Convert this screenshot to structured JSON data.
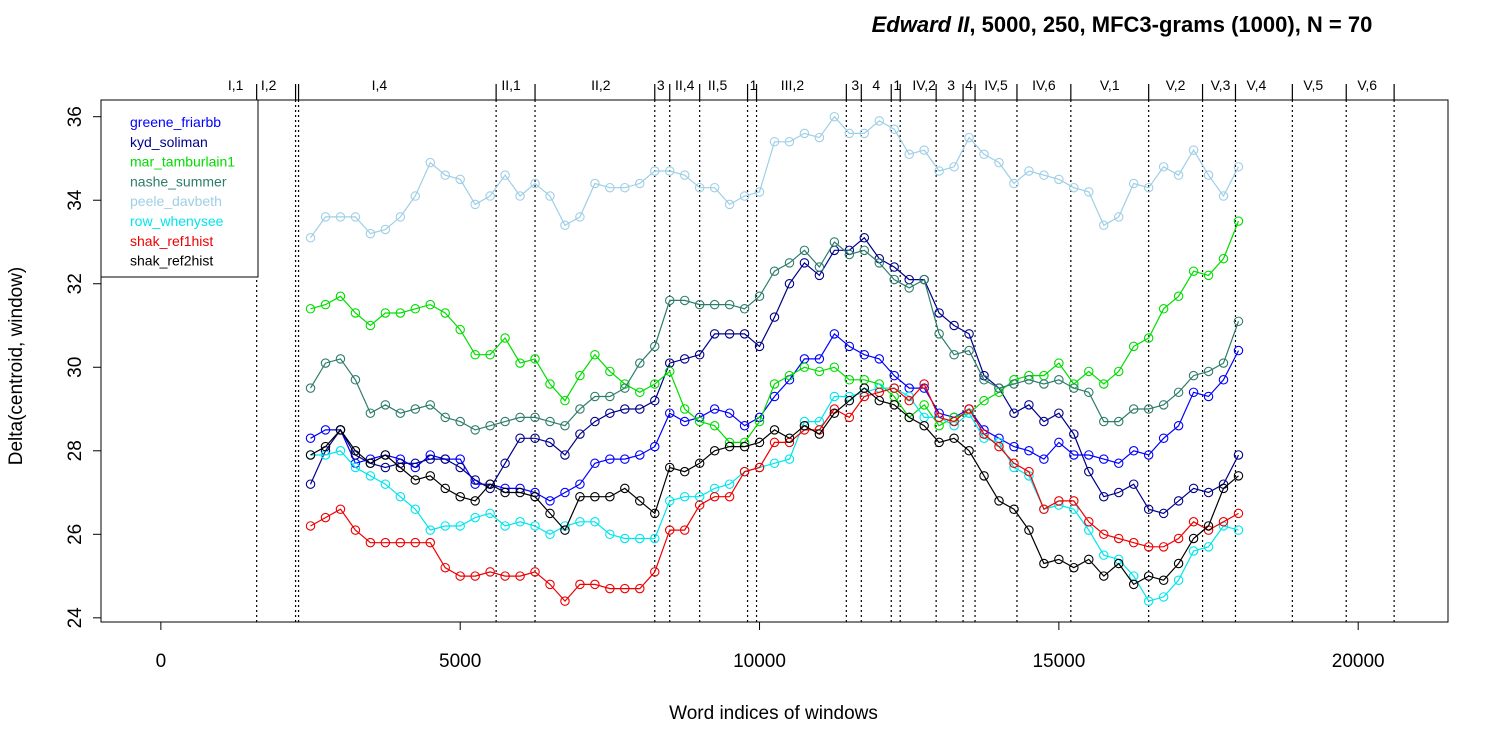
{
  "chart_data": {
    "type": "line",
    "title_play": "Edward II",
    "title_rest": ", 5000, 250, MFC3-grams (1000), N = 70",
    "xlabel": "Word indices of windows",
    "ylabel": "Delta(centroid, window)",
    "xlim": [
      -1000,
      21500
    ],
    "ylim": [
      23.9,
      36.4
    ],
    "x_ticks": [
      "0",
      "5000",
      "10000",
      "15000",
      "20000"
    ],
    "y_ticks": [
      "24",
      "26",
      "28",
      "30",
      "32",
      "34",
      "36"
    ],
    "x_tick_values": [
      0,
      5000,
      10000,
      15000,
      20000
    ],
    "y_tick_values": [
      24,
      26,
      28,
      30,
      32,
      34,
      36
    ],
    "legend_position": "top-left",
    "scenes": [
      {
        "label": "I,1",
        "x": 1600,
        "label_x": 1250
      },
      {
        "label": "I,2",
        "x": 2250,
        "label_x": 1800
      },
      {
        "label": "",
        "x": 2300,
        "label_x": 0
      },
      {
        "label": "I,4",
        "x": 5600,
        "label_x": 3650
      },
      {
        "label": "II,1",
        "x": 6250,
        "label_x": 5850
      },
      {
        "label": "II,2",
        "x": 8250,
        "label_x": 7350
      },
      {
        "label": "3",
        "x": 8500,
        "label_x": 8350
      },
      {
        "label": "II,4",
        "x": 9000,
        "label_x": 8750
      },
      {
        "label": "II,5",
        "x": 9800,
        "label_x": 9300
      },
      {
        "label": "1",
        "x": 9950,
        "label_x": 9900
      },
      {
        "label": "III,2",
        "x": 11450,
        "label_x": 10550
      },
      {
        "label": "3",
        "x": 11700,
        "label_x": 11600
      },
      {
        "label": "4",
        "x": 12200,
        "label_x": 11950
      },
      {
        "label": "1",
        "x": 12350,
        "label_x": 12300
      },
      {
        "label": "IV,2",
        "x": 12950,
        "label_x": 12750
      },
      {
        "label": "3",
        "x": 13400,
        "label_x": 13200
      },
      {
        "label": "4",
        "x": 13600,
        "label_x": 13500
      },
      {
        "label": "IV,5",
        "x": 14300,
        "label_x": 13950
      },
      {
        "label": "IV,6",
        "x": 15200,
        "label_x": 14750
      },
      {
        "label": "V,1",
        "x": 16500,
        "label_x": 15850
      },
      {
        "label": "V,2",
        "x": 17400,
        "label_x": 16950
      },
      {
        "label": "V,3",
        "x": 17950,
        "label_x": 17700
      },
      {
        "label": "V,4",
        "x": 18900,
        "label_x": 18300
      },
      {
        "label": "V,5",
        "x": 19800,
        "label_x": 19250
      },
      {
        "label": "V,6",
        "x": 20600,
        "label_x": 20150
      }
    ],
    "x": [
      2500,
      2750,
      3000,
      3250,
      3500,
      3750,
      4000,
      4250,
      4500,
      4750,
      5000,
      5250,
      5500,
      5750,
      6000,
      6250,
      6500,
      6750,
      7000,
      7250,
      7500,
      7750,
      8000,
      8250,
      8500,
      8750,
      9000,
      9250,
      9500,
      9750,
      10000,
      10250,
      10500,
      10750,
      11000,
      11250,
      11500,
      11750,
      12000,
      12250,
      12500,
      12750,
      13000,
      13250,
      13500,
      13750,
      14000,
      14250,
      14500,
      14750,
      15000,
      15250,
      15500,
      15750,
      16000,
      16250,
      16500,
      16750,
      17000,
      17250,
      17500,
      17750,
      18000
    ],
    "series": [
      {
        "name": "greene_friarbb",
        "color": "#0000ff",
        "values": [
          28.3,
          28.5,
          28.5,
          27.7,
          27.8,
          27.9,
          27.8,
          27.6,
          27.9,
          27.8,
          27.8,
          27.2,
          27.2,
          27.1,
          27.1,
          27.0,
          26.8,
          27.0,
          27.2,
          27.7,
          27.8,
          27.8,
          27.9,
          28.1,
          28.9,
          28.7,
          28.8,
          29.0,
          28.9,
          28.6,
          28.8,
          29.3,
          29.7,
          30.2,
          30.2,
          30.8,
          30.5,
          30.3,
          30.2,
          29.8,
          29.5,
          29.5,
          28.9,
          28.8,
          29.0,
          28.5,
          28.3,
          28.1,
          28.0,
          27.8,
          28.2,
          27.9,
          27.9,
          27.8,
          27.7,
          28.0,
          27.9,
          28.3,
          28.6,
          29.4,
          29.3,
          29.7,
          30.4
        ]
      },
      {
        "name": "kyd_soliman",
        "color": "#00008b",
        "values": [
          27.2,
          28.0,
          28.5,
          27.9,
          27.7,
          27.6,
          27.7,
          27.7,
          27.8,
          27.8,
          27.6,
          27.3,
          27.1,
          27.7,
          28.3,
          28.3,
          28.2,
          27.9,
          28.4,
          28.7,
          28.9,
          29.0,
          29.0,
          29.2,
          30.1,
          30.2,
          30.3,
          30.8,
          30.8,
          30.8,
          30.5,
          31.2,
          32.0,
          32.5,
          32.2,
          32.8,
          32.8,
          33.1,
          32.6,
          32.4,
          32.1,
          32.1,
          31.3,
          31.0,
          30.8,
          29.8,
          29.5,
          28.9,
          29.1,
          28.7,
          28.9,
          28.4,
          27.5,
          26.9,
          27.0,
          27.2,
          26.6,
          26.5,
          26.8,
          27.1,
          27.0,
          27.2,
          27.9
        ]
      },
      {
        "name": "mar_tamburlain1",
        "color": "#00dd00",
        "values": [
          31.4,
          31.5,
          31.7,
          31.3,
          31.0,
          31.3,
          31.3,
          31.4,
          31.5,
          31.3,
          30.9,
          30.3,
          30.3,
          30.7,
          30.1,
          30.2,
          29.6,
          29.2,
          29.8,
          30.3,
          29.9,
          29.6,
          29.4,
          29.6,
          29.9,
          29.0,
          28.7,
          28.6,
          28.2,
          28.2,
          28.7,
          29.6,
          29.8,
          30.0,
          29.9,
          30.0,
          29.7,
          29.7,
          29.6,
          29.3,
          28.8,
          29.1,
          28.6,
          28.8,
          28.9,
          29.2,
          29.4,
          29.7,
          29.8,
          29.8,
          30.1,
          29.6,
          29.9,
          29.6,
          29.9,
          30.5,
          30.7,
          31.4,
          31.7,
          32.3,
          32.2,
          32.6,
          33.5
        ]
      },
      {
        "name": "nashe_summer",
        "color": "#2e7d6b",
        "values": [
          29.5,
          30.1,
          30.2,
          29.7,
          28.9,
          29.1,
          28.9,
          29.0,
          29.1,
          28.8,
          28.7,
          28.5,
          28.6,
          28.7,
          28.8,
          28.8,
          28.7,
          28.6,
          29.0,
          29.3,
          29.3,
          29.5,
          30.1,
          30.5,
          31.6,
          31.6,
          31.5,
          31.5,
          31.5,
          31.4,
          31.7,
          32.3,
          32.5,
          32.8,
          32.4,
          33.0,
          32.7,
          32.8,
          32.5,
          32.1,
          31.9,
          32.1,
          30.8,
          30.3,
          30.4,
          29.7,
          29.5,
          29.6,
          29.7,
          29.6,
          29.7,
          29.5,
          29.4,
          28.7,
          28.7,
          29.0,
          29.0,
          29.1,
          29.4,
          29.8,
          29.9,
          30.1,
          31.1
        ]
      },
      {
        "name": "peele_davbeth",
        "color": "#9fcfe6",
        "values": [
          33.1,
          33.6,
          33.6,
          33.6,
          33.2,
          33.3,
          33.6,
          34.1,
          34.9,
          34.6,
          34.5,
          33.9,
          34.1,
          34.6,
          34.1,
          34.4,
          34.1,
          33.4,
          33.6,
          34.4,
          34.3,
          34.3,
          34.4,
          34.7,
          34.7,
          34.6,
          34.3,
          34.3,
          33.9,
          34.1,
          34.2,
          35.4,
          35.4,
          35.6,
          35.5,
          36.0,
          35.6,
          35.6,
          35.9,
          35.7,
          35.1,
          35.2,
          34.7,
          34.8,
          35.5,
          35.1,
          34.9,
          34.4,
          34.7,
          34.6,
          34.5,
          34.3,
          34.2,
          33.4,
          33.6,
          34.4,
          34.3,
          34.8,
          34.6,
          35.2,
          34.6,
          34.1,
          34.8
        ]
      },
      {
        "name": "row_whenysee",
        "color": "#00e5ee",
        "values": [
          27.9,
          27.9,
          28.0,
          27.6,
          27.4,
          27.2,
          26.9,
          26.6,
          26.1,
          26.2,
          26.2,
          26.4,
          26.5,
          26.2,
          26.3,
          26.2,
          26.0,
          26.2,
          26.3,
          26.3,
          26.0,
          25.9,
          25.9,
          25.9,
          26.8,
          26.9,
          26.9,
          27.1,
          27.2,
          27.5,
          27.6,
          27.7,
          27.8,
          28.7,
          28.7,
          29.3,
          29.3,
          29.4,
          29.5,
          29.5,
          29.3,
          28.8,
          28.8,
          28.6,
          28.9,
          28.3,
          28.2,
          27.6,
          27.4,
          26.6,
          26.7,
          26.6,
          26.1,
          25.5,
          25.4,
          25.0,
          24.4,
          24.5,
          24.9,
          25.6,
          25.7,
          26.2,
          26.1
        ]
      },
      {
        "name": "shak_ref1hist",
        "color": "#ee0000",
        "values": [
          26.2,
          26.4,
          26.6,
          26.1,
          25.8,
          25.8,
          25.8,
          25.8,
          25.8,
          25.2,
          25.0,
          25.0,
          25.1,
          25.0,
          25.0,
          25.1,
          24.8,
          24.4,
          24.8,
          24.8,
          24.7,
          24.7,
          24.7,
          25.1,
          26.1,
          26.1,
          26.7,
          26.9,
          26.9,
          27.5,
          27.6,
          28.2,
          28.2,
          28.5,
          28.5,
          29.0,
          28.8,
          29.3,
          29.4,
          29.5,
          29.2,
          29.6,
          28.8,
          28.7,
          29.0,
          28.4,
          28.1,
          27.7,
          27.5,
          26.6,
          26.8,
          26.8,
          26.3,
          26.0,
          25.9,
          25.8,
          25.7,
          25.7,
          25.9,
          26.3,
          26.1,
          26.3,
          26.5
        ]
      },
      {
        "name": "shak_ref2hist",
        "color": "#000000",
        "values": [
          27.9,
          28.1,
          28.5,
          28.0,
          27.7,
          27.9,
          27.6,
          27.3,
          27.4,
          27.1,
          26.9,
          26.8,
          27.2,
          27.0,
          27.0,
          26.9,
          26.5,
          26.1,
          26.9,
          26.9,
          26.9,
          27.1,
          26.8,
          26.5,
          27.6,
          27.5,
          27.7,
          28.0,
          28.1,
          28.1,
          28.2,
          28.5,
          28.3,
          28.6,
          28.4,
          28.9,
          29.2,
          29.5,
          29.2,
          29.1,
          28.8,
          28.6,
          28.2,
          28.3,
          28.0,
          27.4,
          26.8,
          26.6,
          26.1,
          25.3,
          25.4,
          25.2,
          25.4,
          25.0,
          25.3,
          24.8,
          25.0,
          24.9,
          25.3,
          25.9,
          26.2,
          27.1,
          27.4
        ]
      }
    ]
  }
}
